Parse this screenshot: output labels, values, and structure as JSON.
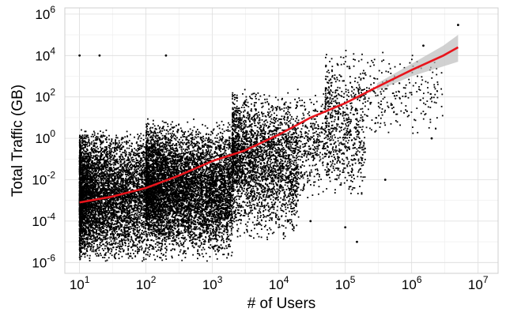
{
  "chart_data": {
    "type": "scatter",
    "title": "",
    "xlabel": "# of Users",
    "ylabel": "Total Traffic (GB)",
    "x_scale": "log10",
    "y_scale": "log10",
    "xlim": [
      6,
      20000000
    ],
    "ylim": [
      3e-07,
      2000000
    ],
    "x_ticks": [
      {
        "value": 10,
        "base": "10",
        "exp": "1"
      },
      {
        "value": 100,
        "base": "10",
        "exp": "2"
      },
      {
        "value": 1000,
        "base": "10",
        "exp": "3"
      },
      {
        "value": 10000,
        "base": "10",
        "exp": "4"
      },
      {
        "value": 100000,
        "base": "10",
        "exp": "5"
      },
      {
        "value": 1000000,
        "base": "10",
        "exp": "6"
      },
      {
        "value": 10000000,
        "base": "10",
        "exp": "7"
      }
    ],
    "y_ticks": [
      {
        "value": 1e-06,
        "base": "10",
        "exp": "-6"
      },
      {
        "value": 0.0001,
        "base": "10",
        "exp": "-4"
      },
      {
        "value": 0.01,
        "base": "10",
        "exp": "-2"
      },
      {
        "value": 1,
        "base": "10",
        "exp": "0"
      },
      {
        "value": 100,
        "base": "10",
        "exp": "2"
      },
      {
        "value": 10000,
        "base": "10",
        "exp": "4"
      },
      {
        "value": 1000000,
        "base": "10",
        "exp": "6"
      }
    ],
    "grid": true,
    "points_color": "#000000",
    "fit_color": "#e8141b",
    "ci_color": "#bdbdbd",
    "series": [
      {
        "kind": "scatter",
        "clusters": [
          {
            "x_range": [
              10,
              2000
            ],
            "y_range": [
              1e-06,
              3
            ],
            "density": "very-high"
          },
          {
            "x_range": [
              100,
              20000
            ],
            "y_range": [
              1e-05,
              10
            ],
            "density": "high"
          },
          {
            "x_range": [
              2000,
              200000
            ],
            "y_range": [
              0.001,
              300
            ],
            "density": "medium"
          },
          {
            "x_range": [
              50000,
              3000000
            ],
            "y_range": [
              1,
              20000
            ],
            "density": "low"
          }
        ],
        "outliers": [
          [
            10,
            10000
          ],
          [
            20,
            10000
          ],
          [
            200,
            10000
          ],
          [
            3000,
            50
          ],
          [
            30000,
            0.0001
          ],
          [
            100000,
            5e-05
          ],
          [
            150000,
            1e-05
          ],
          [
            400000,
            0.01
          ],
          [
            2000000,
            1
          ],
          [
            5000000,
            300000
          ],
          [
            1500000,
            30000
          ]
        ]
      },
      {
        "kind": "line",
        "x": [
          10,
          30,
          100,
          300,
          1000,
          3000,
          10000,
          30000,
          100000,
          300000,
          1000000,
          3000000,
          5000000
        ],
        "y": [
          0.0008,
          0.0015,
          0.004,
          0.015,
          0.08,
          0.25,
          1.5,
          10,
          50,
          300,
          2000,
          10000,
          25000
        ]
      },
      {
        "kind": "ci-band",
        "x": [
          300000,
          1000000,
          3000000,
          5000000
        ],
        "lower": [
          200,
          1000,
          3000,
          5000
        ],
        "upper": [
          450,
          4000,
          30000,
          100000
        ]
      }
    ]
  }
}
